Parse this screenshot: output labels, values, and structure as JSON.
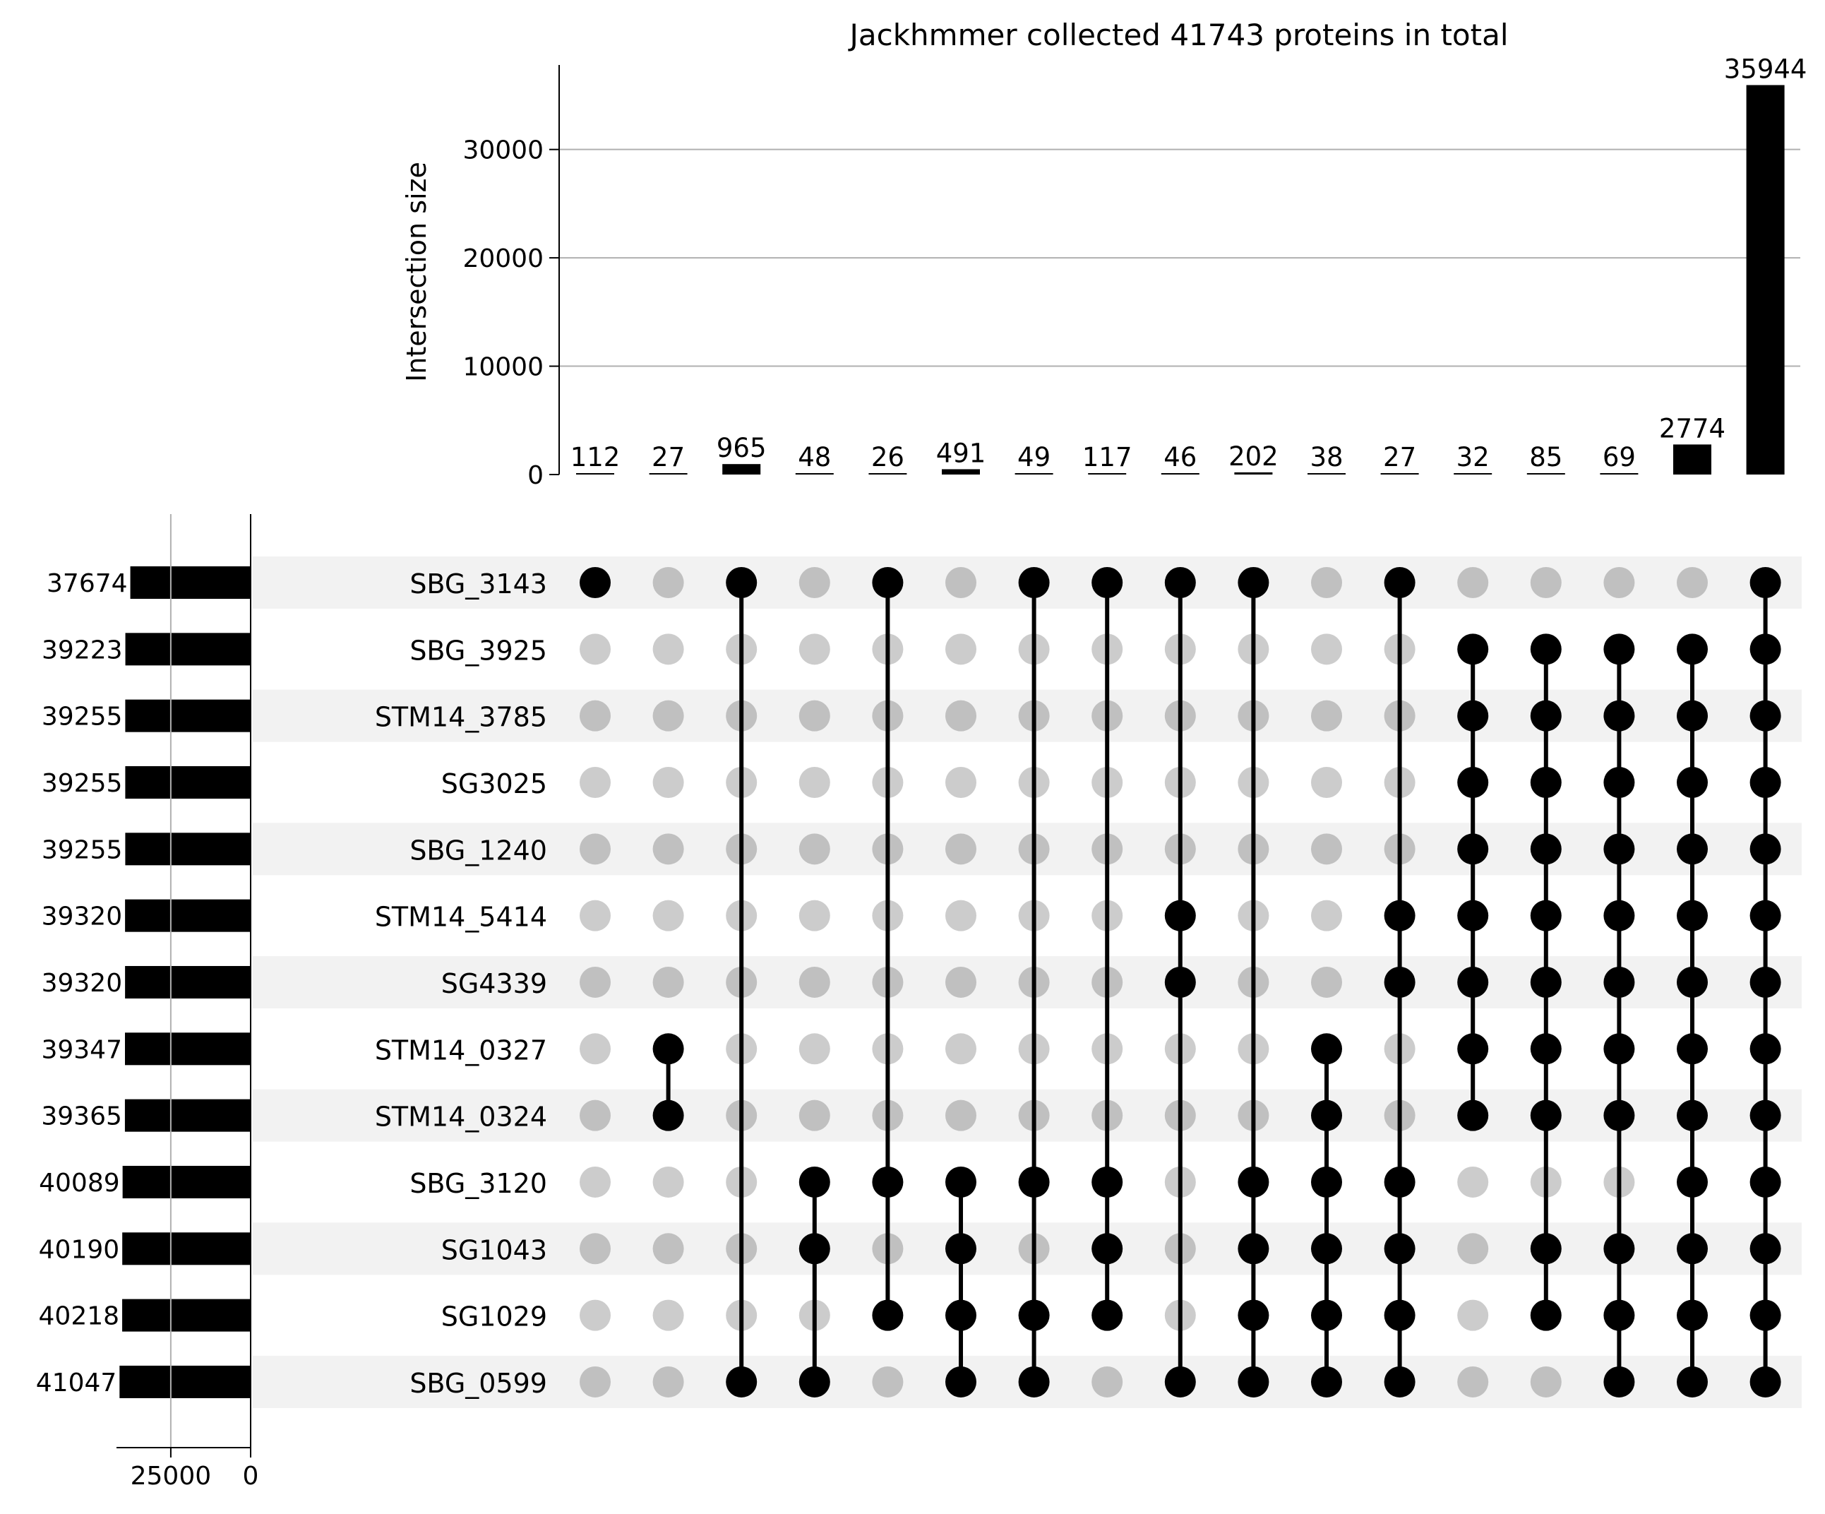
{
  "chart_data": {
    "type": "upset",
    "title": "Jackhmmer collected 41743 proteins in total",
    "intersection_ylabel": "Intersection size",
    "intersection_yticks": [
      0,
      10000,
      20000,
      30000
    ],
    "intersection_ylim": [
      0,
      37800
    ],
    "intersection_grid": true,
    "set_size_xticks": [
      25000,
      0
    ],
    "set_size_xlim": [
      42000,
      0
    ],
    "sets": [
      {
        "name": "SBG_3143",
        "size": 37674
      },
      {
        "name": "SBG_3925",
        "size": 39223
      },
      {
        "name": "STM14_3785",
        "size": 39255
      },
      {
        "name": "SG3025",
        "size": 39255
      },
      {
        "name": "SBG_1240",
        "size": 39255
      },
      {
        "name": "STM14_5414",
        "size": 39320
      },
      {
        "name": "SG4339",
        "size": 39320
      },
      {
        "name": "STM14_0327",
        "size": 39347
      },
      {
        "name": "STM14_0324",
        "size": 39365
      },
      {
        "name": "SBG_3120",
        "size": 40089
      },
      {
        "name": "SG1043",
        "size": 40190
      },
      {
        "name": "SG1029",
        "size": 40218
      },
      {
        "name": "SBG_0599",
        "size": 41047
      }
    ],
    "intersections": [
      {
        "size": 112,
        "members": [
          0
        ]
      },
      {
        "size": 27,
        "members": [
          7,
          8
        ]
      },
      {
        "size": 965,
        "members": [
          0,
          12
        ]
      },
      {
        "size": 48,
        "members": [
          9,
          10,
          12
        ]
      },
      {
        "size": 26,
        "members": [
          0,
          9,
          11
        ]
      },
      {
        "size": 491,
        "members": [
          9,
          10,
          11,
          12
        ]
      },
      {
        "size": 49,
        "members": [
          0,
          9,
          11,
          12
        ]
      },
      {
        "size": 117,
        "members": [
          0,
          9,
          10,
          11
        ]
      },
      {
        "size": 46,
        "members": [
          0,
          5,
          6,
          12
        ]
      },
      {
        "size": 202,
        "members": [
          0,
          9,
          10,
          11,
          12
        ]
      },
      {
        "size": 38,
        "members": [
          7,
          8,
          9,
          10,
          11,
          12
        ]
      },
      {
        "size": 27,
        "members": [
          0,
          5,
          6,
          9,
          10,
          11,
          12
        ]
      },
      {
        "size": 32,
        "members": [
          1,
          2,
          3,
          4,
          5,
          6,
          7,
          8
        ]
      },
      {
        "size": 85,
        "members": [
          1,
          2,
          3,
          4,
          5,
          6,
          7,
          8,
          10,
          11
        ]
      },
      {
        "size": 69,
        "members": [
          1,
          2,
          3,
          4,
          5,
          6,
          7,
          8,
          10,
          11,
          12
        ]
      },
      {
        "size": 2774,
        "members": [
          1,
          2,
          3,
          4,
          5,
          6,
          7,
          8,
          9,
          10,
          11,
          12
        ]
      },
      {
        "size": 35944,
        "members": [
          0,
          1,
          2,
          3,
          4,
          5,
          6,
          7,
          8,
          9,
          10,
          11,
          12
        ]
      }
    ]
  },
  "colors": {
    "active_dot": "#000000",
    "inactive_dot": "#cccccc",
    "inactive_dot_shaded": "#c0c0c0",
    "row_shade": "#f2f2f2",
    "bar": "#000000",
    "grid": "#b0b0b0"
  }
}
